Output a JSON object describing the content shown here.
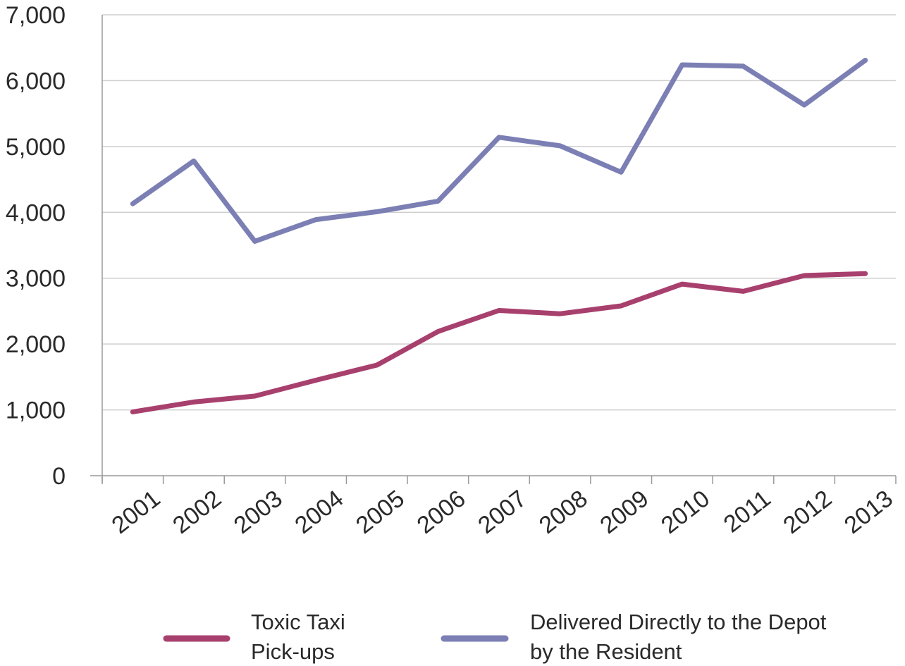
{
  "chart_data": {
    "type": "line",
    "title": "",
    "xlabel": "",
    "ylabel": "",
    "categories": [
      "2001",
      "2002",
      "2003",
      "2004",
      "2005",
      "2006",
      "2007",
      "2008",
      "2009",
      "2010",
      "2011",
      "2012",
      "2013"
    ],
    "ylim": [
      0,
      7000
    ],
    "yticks": [
      "0",
      "1,000",
      "2,000",
      "3,000",
      "4,000",
      "5,000",
      "6,000",
      "7,000"
    ],
    "grid": true,
    "legend_position": "bottom",
    "series": [
      {
        "name": "Toxic Taxi Pick-ups",
        "name_lines": [
          "Toxic Taxi",
          "Pick-ups"
        ],
        "color": "#a8406e",
        "values": [
          970,
          1120,
          1210,
          1450,
          1680,
          2190,
          2510,
          2460,
          2580,
          2910,
          2800,
          3040,
          3070
        ]
      },
      {
        "name": "Delivered Directly to the Depot by the Resident",
        "name_lines": [
          "Delivered Directly to the Depot",
          "by the Resident"
        ],
        "color": "#7b7fb4",
        "values": [
          4130,
          4780,
          3560,
          3890,
          4010,
          4170,
          5140,
          5010,
          4610,
          6240,
          6220,
          5630,
          6310
        ]
      }
    ]
  }
}
